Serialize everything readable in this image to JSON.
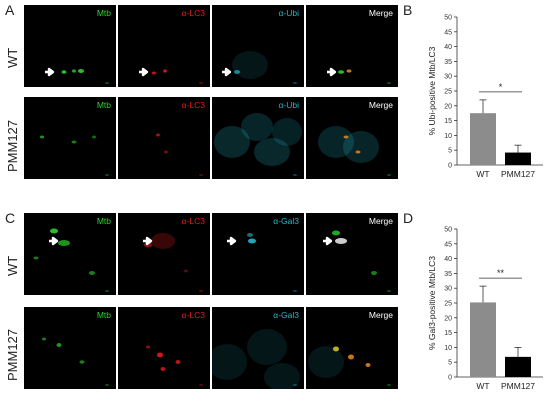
{
  "figure": {
    "panels": {
      "A": {
        "letter": "A",
        "rows": [
          "WT",
          "PMM127"
        ],
        "channels": [
          {
            "label": "Mtb",
            "color": "#2bd12b"
          },
          {
            "label": "α-LC3",
            "color": "#e21b1b"
          },
          {
            "label": "α-Ubi",
            "color": "#24b7c8"
          },
          {
            "label": "Merge",
            "color": "#ffffff"
          }
        ]
      },
      "C": {
        "letter": "C",
        "rows": [
          "WT",
          "PMM127"
        ],
        "channels": [
          {
            "label": "Mtb",
            "color": "#2bd12b"
          },
          {
            "label": "α-LC3",
            "color": "#e21b1b"
          },
          {
            "label": "α-Gal3",
            "color": "#24b7c8"
          },
          {
            "label": "Merge",
            "color": "#ffffff"
          }
        ]
      },
      "B": {
        "letter": "B"
      },
      "D": {
        "letter": "D"
      }
    }
  },
  "chart_data": [
    {
      "type": "bar",
      "panel": "B",
      "categories": [
        "WT",
        "PMM127"
      ],
      "values": [
        17.5,
        4.2
      ],
      "errors": [
        4.5,
        2.5
      ],
      "bar_colors": [
        "#8c8c8c",
        "#000000"
      ],
      "ylabel": "% Ubi-positive Mtb/LC3",
      "ylim": [
        0,
        50
      ],
      "yticks": [
        0,
        5,
        10,
        15,
        20,
        25,
        30,
        35,
        40,
        45,
        50
      ],
      "significance": "*"
    },
    {
      "type": "bar",
      "panel": "D",
      "categories": [
        "WT",
        "PMM127"
      ],
      "values": [
        25.2,
        6.8
      ],
      "errors": [
        5.5,
        3.2
      ],
      "bar_colors": [
        "#8c8c8c",
        "#000000"
      ],
      "ylabel": "% Gal3-positive Mtb/LC3",
      "ylim": [
        0,
        50
      ],
      "yticks": [
        0,
        5,
        10,
        15,
        20,
        25,
        30,
        35,
        40,
        45,
        50
      ],
      "significance": "**"
    }
  ]
}
